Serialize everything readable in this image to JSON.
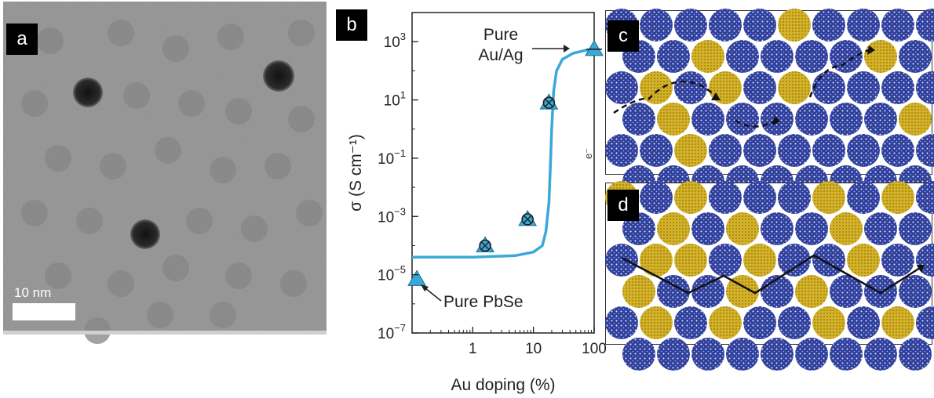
{
  "panels": {
    "a": {
      "label": "a",
      "scale_bar": "10 nm"
    },
    "b": {
      "label": "b"
    },
    "c": {
      "label": "c",
      "electron_label": "e⁻"
    },
    "d": {
      "label": "d"
    }
  },
  "chart_data": {
    "type": "scatter",
    "title": "",
    "xlabel": "Au doping (%)",
    "ylabel": "σ (S cm⁻¹)",
    "xscale": "log",
    "yscale": "log",
    "xlim": [
      0.1,
      100
    ],
    "ylim": [
      1e-07,
      10000
    ],
    "x_ticks": [
      {
        "value": 1,
        "label": "1"
      },
      {
        "value": 10,
        "label": "10"
      },
      {
        "value": 100,
        "label": "100"
      }
    ],
    "y_ticks": [
      {
        "value": 1000.0,
        "label": "10",
        "exp": "3"
      },
      {
        "value": 10.0,
        "label": "10",
        "exp": "1"
      },
      {
        "value": 0.1,
        "label": "10",
        "exp": "−1"
      },
      {
        "value": 0.001,
        "label": "10",
        "exp": "−3"
      },
      {
        "value": 1e-05,
        "label": "10",
        "exp": "−5"
      },
      {
        "value": 1e-07,
        "label": "10",
        "exp": "−7"
      }
    ],
    "points": [
      {
        "x": 0.12,
        "y": 7e-06
      },
      {
        "x": 1.6,
        "y": 0.0001
      },
      {
        "x": 8,
        "y": 0.0008
      },
      {
        "x": 18,
        "y": 8
      },
      {
        "x": 100,
        "y": 550
      }
    ],
    "fit_curve": [
      [
        0.1,
        4e-05
      ],
      [
        1,
        4e-05
      ],
      [
        5,
        4.5e-05
      ],
      [
        10,
        6e-05
      ],
      [
        14,
        0.0001
      ],
      [
        16,
        0.0003
      ],
      [
        18,
        0.003
      ],
      [
        19,
        0.05
      ],
      [
        20,
        1
      ],
      [
        21.5,
        20
      ],
      [
        24,
        100
      ],
      [
        30,
        250
      ],
      [
        45,
        400
      ],
      [
        70,
        500
      ],
      [
        100,
        550
      ]
    ],
    "annotations": [
      {
        "text": "Pure PbSe"
      },
      {
        "text": "Pure"
      },
      {
        "text": "Au/Ag"
      }
    ],
    "colors": {
      "curve": "#3aa8d8",
      "marker": "#3aa8d8"
    }
  }
}
